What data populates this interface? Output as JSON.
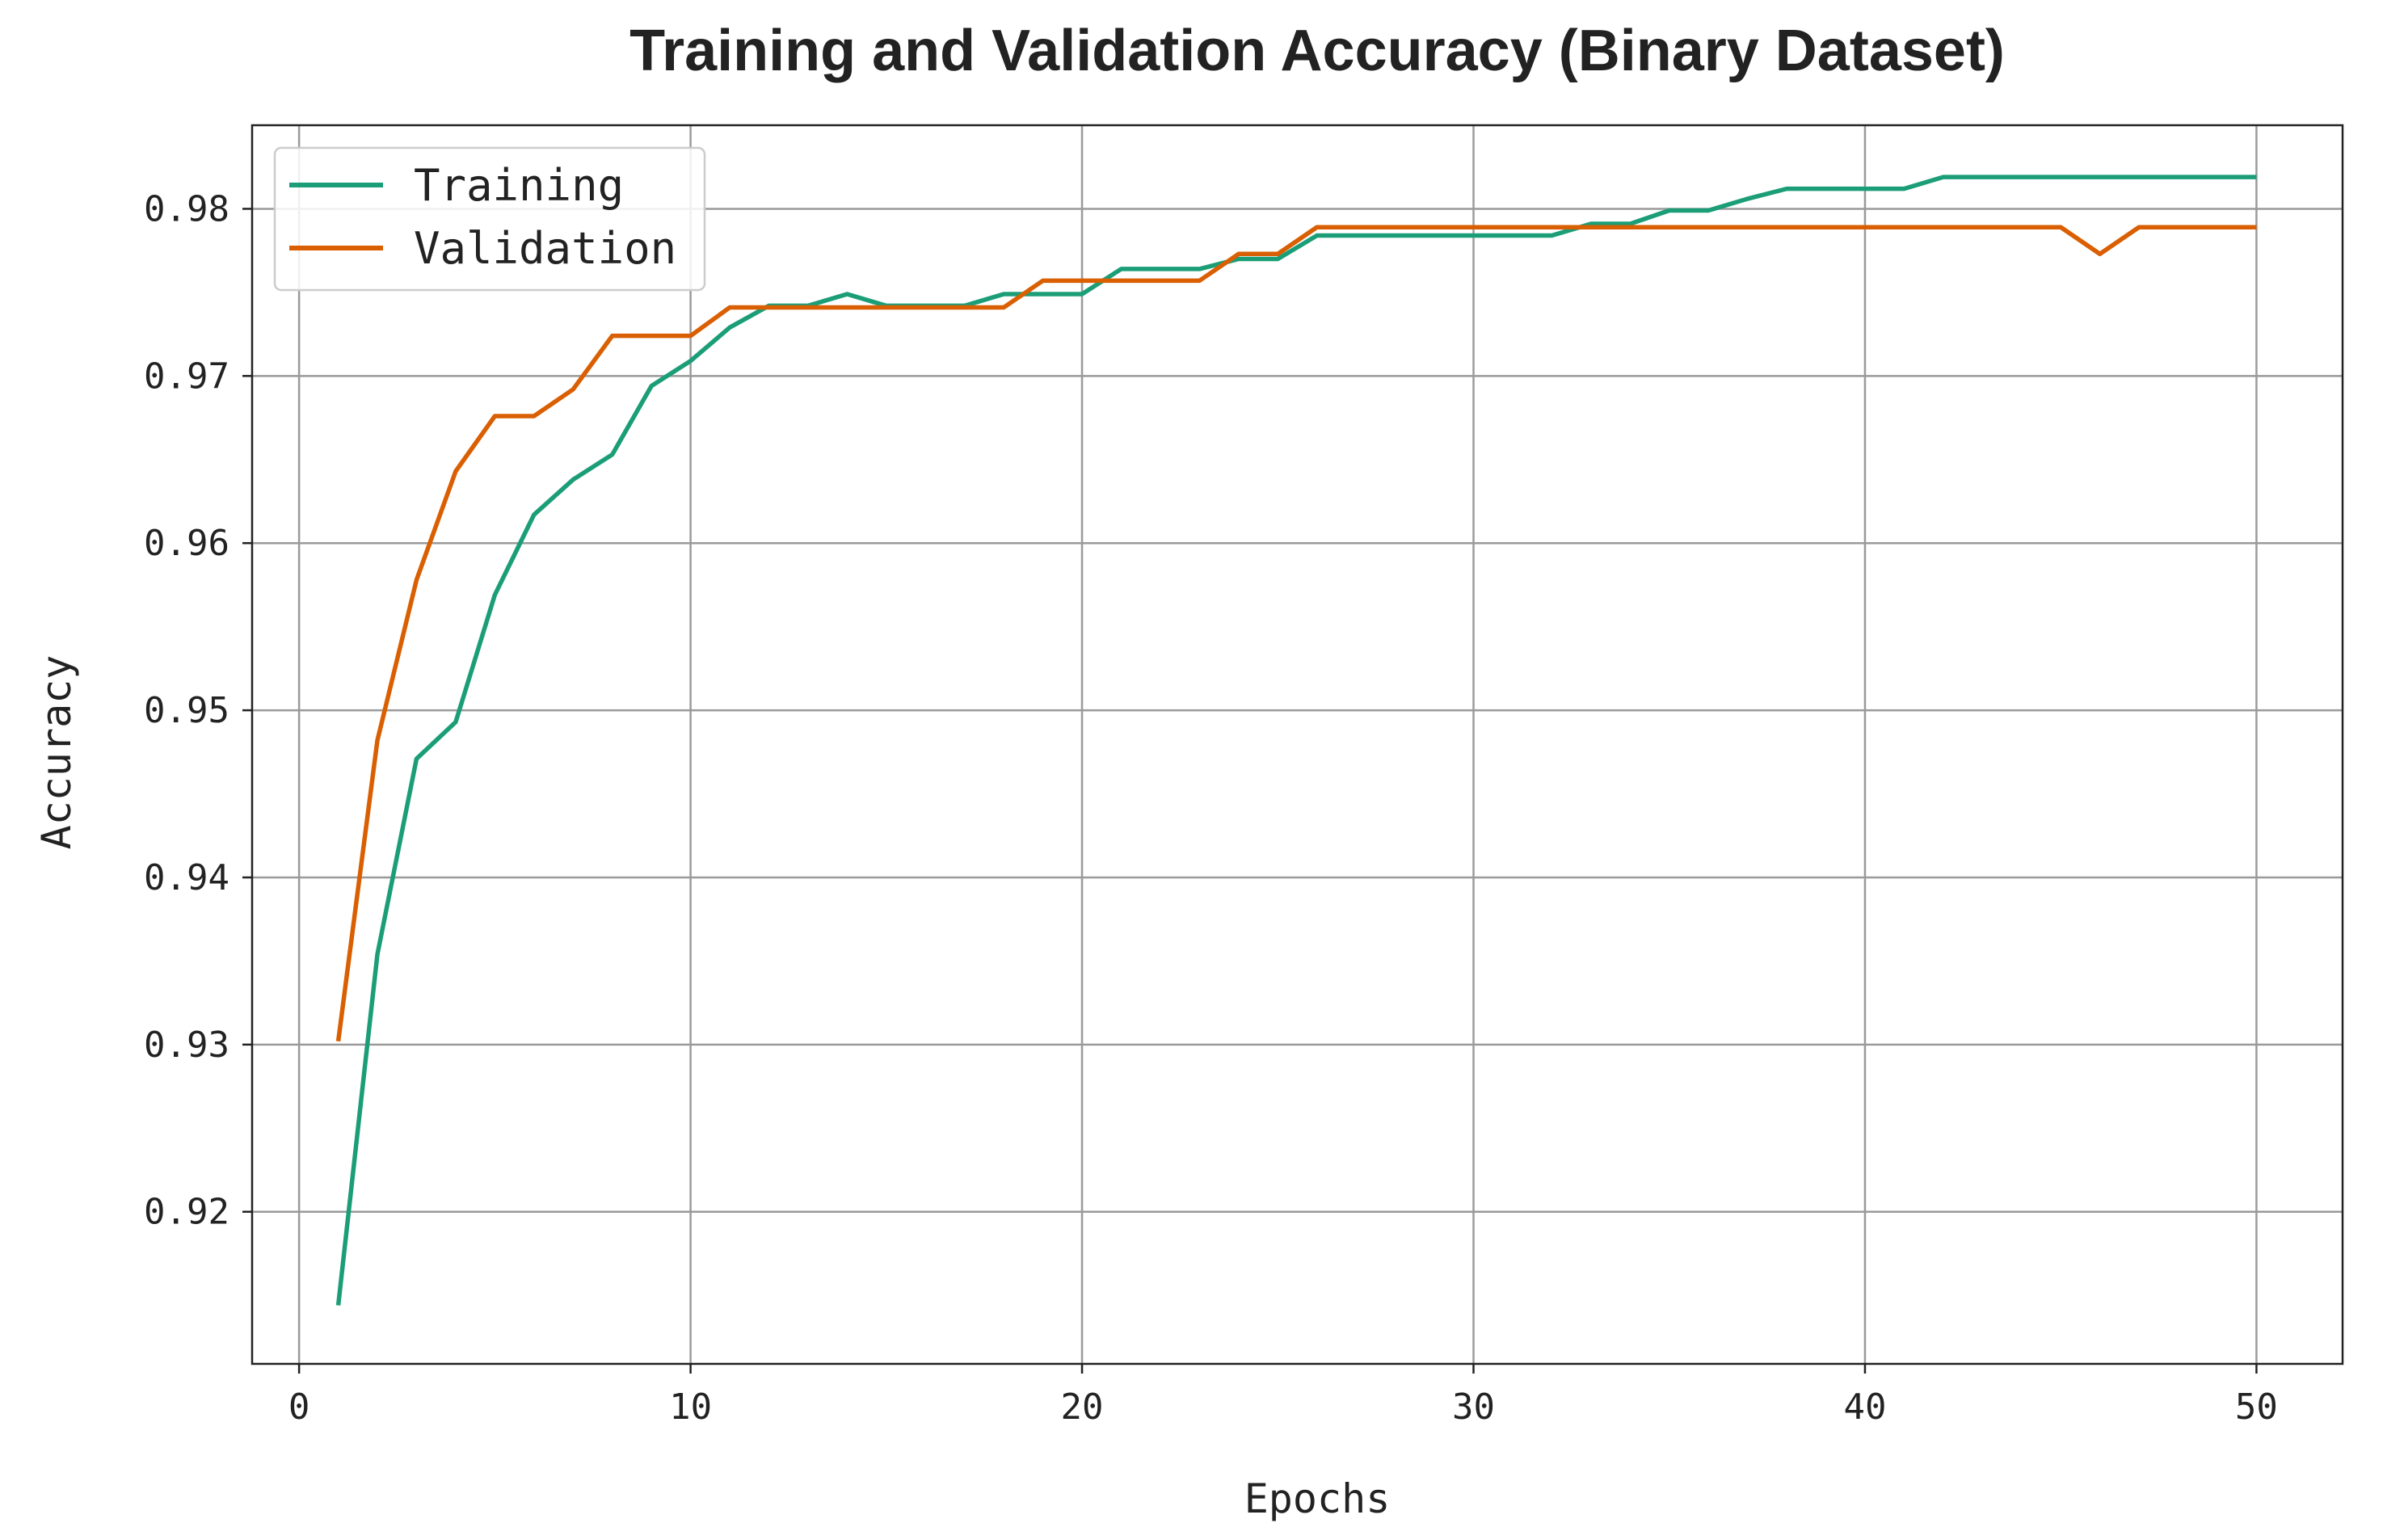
{
  "chart_data": {
    "type": "line",
    "title": "Training and Validation Accuracy (Binary Dataset)",
    "xlabel": "Epochs",
    "ylabel": "Accuracy",
    "xlim": [
      -1.2,
      52.2
    ],
    "ylim": [
      0.9109,
      0.985
    ],
    "xticks": [
      0,
      10,
      20,
      30,
      40,
      50
    ],
    "xtick_labels": [
      "0",
      "10",
      "20",
      "30",
      "40",
      "50"
    ],
    "yticks": [
      0.92,
      0.93,
      0.94,
      0.95,
      0.96,
      0.97,
      0.98
    ],
    "ytick_labels": [
      "0.92",
      "0.93",
      "0.94",
      "0.95",
      "0.96",
      "0.97",
      "0.98"
    ],
    "grid": true,
    "legend_position": "top-left",
    "x": [
      1,
      2,
      3,
      4,
      5,
      6,
      7,
      8,
      9,
      10,
      11,
      12,
      13,
      14,
      15,
      16,
      17,
      18,
      19,
      20,
      21,
      22,
      23,
      24,
      25,
      26,
      27,
      28,
      29,
      30,
      31,
      32,
      33,
      34,
      35,
      36,
      37,
      38,
      39,
      40,
      41,
      42,
      43,
      44,
      45,
      46,
      47,
      48,
      49,
      50
    ],
    "series": [
      {
        "name": "Training",
        "color": "#1b9e77",
        "values": [
          0.9144,
          0.9354,
          0.9471,
          0.9493,
          0.9569,
          0.9617,
          0.9638,
          0.9653,
          0.9694,
          0.9709,
          0.9729,
          0.9742,
          0.9742,
          0.9749,
          0.9742,
          0.9742,
          0.9742,
          0.9749,
          0.9749,
          0.9749,
          0.9764,
          0.9764,
          0.9764,
          0.977,
          0.977,
          0.9784,
          0.9784,
          0.9784,
          0.9784,
          0.9784,
          0.9784,
          0.9784,
          0.9791,
          0.9791,
          0.9799,
          0.9799,
          0.9806,
          0.9812,
          0.9812,
          0.9812,
          0.9812,
          0.9819,
          0.9819,
          0.9819,
          0.9819,
          0.9819,
          0.9819,
          0.9819,
          0.9819,
          0.9819
        ]
      },
      {
        "name": "Validation",
        "color": "#d95f02",
        "values": [
          0.9302,
          0.9482,
          0.9578,
          0.9643,
          0.9676,
          0.9676,
          0.9692,
          0.9724,
          0.9724,
          0.9724,
          0.9741,
          0.9741,
          0.9741,
          0.9741,
          0.9741,
          0.9741,
          0.9741,
          0.9741,
          0.9757,
          0.9757,
          0.9757,
          0.9757,
          0.9757,
          0.9773,
          0.9773,
          0.9789,
          0.9789,
          0.9789,
          0.9789,
          0.9789,
          0.9789,
          0.9789,
          0.9789,
          0.9789,
          0.9789,
          0.9789,
          0.9789,
          0.9789,
          0.9789,
          0.9789,
          0.9789,
          0.9789,
          0.9789,
          0.9789,
          0.9789,
          0.9773,
          0.9789,
          0.9789,
          0.9789,
          0.9789
        ]
      }
    ]
  }
}
